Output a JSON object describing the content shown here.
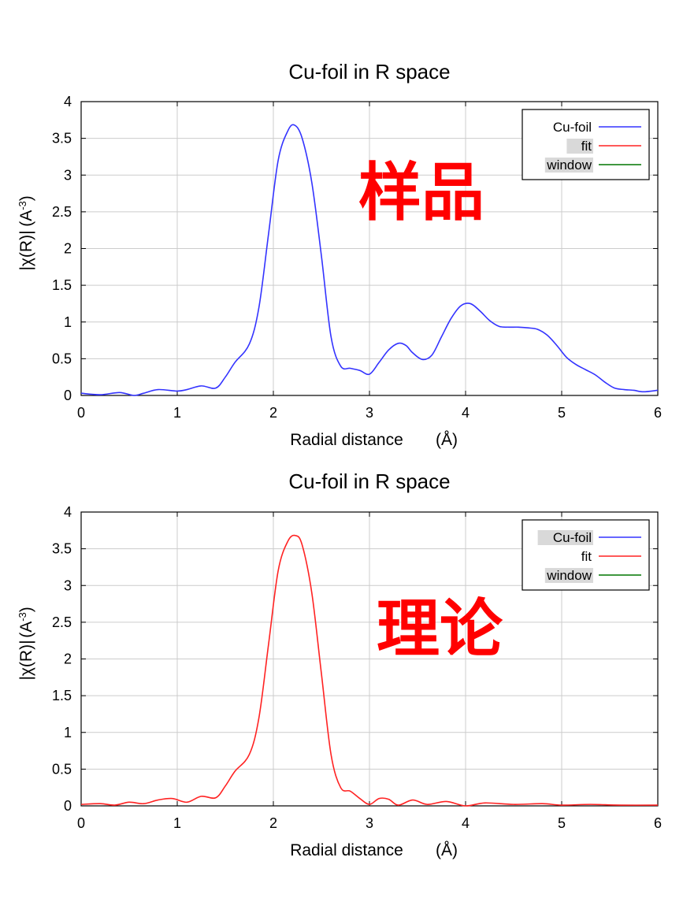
{
  "charts": [
    {
      "title": "Cu-foil in R space",
      "xlabel": "Radial distance",
      "xunit": "(Å)",
      "ylabel": "|χ(R)|",
      "yunit_base": "(A",
      "yunit_exp": "-3",
      "yunit_close": ")",
      "overlay_text": "样品",
      "overlay_color": "#ff0000",
      "legend": [
        {
          "label": "Cu-foil",
          "color": "#3333ff",
          "highlighted": false
        },
        {
          "label": "fit",
          "color": "#ff2222",
          "highlighted": true
        },
        {
          "label": "window",
          "color": "#007700",
          "highlighted": true
        }
      ]
    },
    {
      "title": "Cu-foil in R space",
      "xlabel": "Radial distance",
      "xunit": "(Å)",
      "ylabel": "|χ(R)|",
      "yunit_base": "(A",
      "yunit_exp": "-3",
      "yunit_close": ")",
      "overlay_text": "理论",
      "overlay_color": "#ff0000",
      "legend": [
        {
          "label": "Cu-foil",
          "color": "#3333ff",
          "highlighted": true
        },
        {
          "label": "fit",
          "color": "#ff2222",
          "highlighted": false
        },
        {
          "label": "window",
          "color": "#007700",
          "highlighted": true
        }
      ]
    }
  ],
  "chart_data": [
    {
      "type": "line",
      "title": "Cu-foil in R space",
      "xlabel": "Radial distance (Å)",
      "ylabel": "|χ(R)| (A-3)",
      "xlim": [
        0,
        6
      ],
      "ylim": [
        0,
        4
      ],
      "xticks": [
        0,
        1,
        2,
        3,
        4,
        5,
        6
      ],
      "xtick_labels": [
        "0",
        "1",
        "2",
        "3",
        "4",
        "5",
        "6"
      ],
      "yticks": [
        0,
        0.5,
        1,
        1.5,
        2,
        2.5,
        3,
        3.5,
        4
      ],
      "ytick_labels": [
        "0",
        "0.5",
        "1",
        "1.5",
        "2",
        "2.5",
        "3",
        "3.5",
        "4"
      ],
      "grid": true,
      "legend_position": "top-right",
      "series": [
        {
          "name": "Cu-foil",
          "color": "#3333ff",
          "x": [
            0,
            0.2,
            0.4,
            0.55,
            0.65,
            0.8,
            1.0,
            1.1,
            1.25,
            1.4,
            1.5,
            1.6,
            1.75,
            1.85,
            1.95,
            2.05,
            2.15,
            2.22,
            2.3,
            2.4,
            2.5,
            2.6,
            2.7,
            2.8,
            2.9,
            3.0,
            3.1,
            3.2,
            3.3,
            3.38,
            3.45,
            3.55,
            3.65,
            3.75,
            3.85,
            3.95,
            4.05,
            4.15,
            4.25,
            4.35,
            4.45,
            4.55,
            4.65,
            4.75,
            4.85,
            4.95,
            5.05,
            5.15,
            5.25,
            5.35,
            5.45,
            5.55,
            5.65,
            5.75,
            5.85,
            6.0
          ],
          "y": [
            0.03,
            0.01,
            0.04,
            0.0,
            0.03,
            0.08,
            0.06,
            0.08,
            0.13,
            0.1,
            0.25,
            0.45,
            0.7,
            1.2,
            2.2,
            3.2,
            3.6,
            3.68,
            3.5,
            2.9,
            1.9,
            0.8,
            0.4,
            0.37,
            0.34,
            0.29,
            0.45,
            0.62,
            0.71,
            0.68,
            0.58,
            0.49,
            0.55,
            0.8,
            1.05,
            1.22,
            1.25,
            1.15,
            1.02,
            0.94,
            0.93,
            0.93,
            0.92,
            0.9,
            0.82,
            0.68,
            0.52,
            0.42,
            0.35,
            0.28,
            0.18,
            0.1,
            0.08,
            0.07,
            0.05,
            0.07
          ]
        }
      ]
    },
    {
      "type": "line",
      "title": "Cu-foil in R space",
      "xlabel": "Radial distance (Å)",
      "ylabel": "|χ(R)| (A-3)",
      "xlim": [
        0,
        6
      ],
      "ylim": [
        0,
        4
      ],
      "xticks": [
        0,
        1,
        2,
        3,
        4,
        5,
        6
      ],
      "xtick_labels": [
        "0",
        "1",
        "2",
        "3",
        "4",
        "5",
        "6"
      ],
      "yticks": [
        0,
        0.5,
        1,
        1.5,
        2,
        2.5,
        3,
        3.5,
        4
      ],
      "ytick_labels": [
        "0",
        "0.5",
        "1",
        "1.5",
        "2",
        "2.5",
        "3",
        "3.5",
        "4"
      ],
      "grid": true,
      "legend_position": "top-right",
      "series": [
        {
          "name": "fit",
          "color": "#ff2222",
          "x": [
            0,
            0.2,
            0.35,
            0.5,
            0.65,
            0.8,
            0.95,
            1.1,
            1.25,
            1.4,
            1.5,
            1.6,
            1.75,
            1.85,
            1.95,
            2.05,
            2.15,
            2.23,
            2.3,
            2.4,
            2.5,
            2.6,
            2.7,
            2.8,
            2.9,
            3.0,
            3.1,
            3.2,
            3.3,
            3.45,
            3.6,
            3.8,
            4.0,
            4.2,
            4.5,
            4.8,
            5.0,
            5.3,
            5.6,
            6.0
          ],
          "y": [
            0.02,
            0.03,
            0.01,
            0.05,
            0.03,
            0.08,
            0.1,
            0.05,
            0.13,
            0.11,
            0.27,
            0.47,
            0.7,
            1.2,
            2.2,
            3.2,
            3.6,
            3.68,
            3.55,
            2.9,
            1.8,
            0.7,
            0.25,
            0.2,
            0.1,
            0.02,
            0.1,
            0.09,
            0.01,
            0.08,
            0.02,
            0.06,
            0.0,
            0.04,
            0.02,
            0.03,
            0.01,
            0.02,
            0.01,
            0.01
          ]
        }
      ]
    }
  ]
}
